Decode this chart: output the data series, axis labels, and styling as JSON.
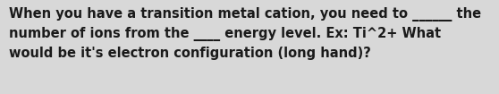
{
  "text": "When you have a transition metal cation, you need to ______ the\nnumber of ions from the ____ energy level. Ex: Ti^2+ What\nwould be it's electron configuration (long hand)?",
  "background_color": "#d8d8d8",
  "text_color": "#1a1a1a",
  "font_size": 10.5,
  "fig_width": 5.58,
  "fig_height": 1.05,
  "dpi": 100
}
